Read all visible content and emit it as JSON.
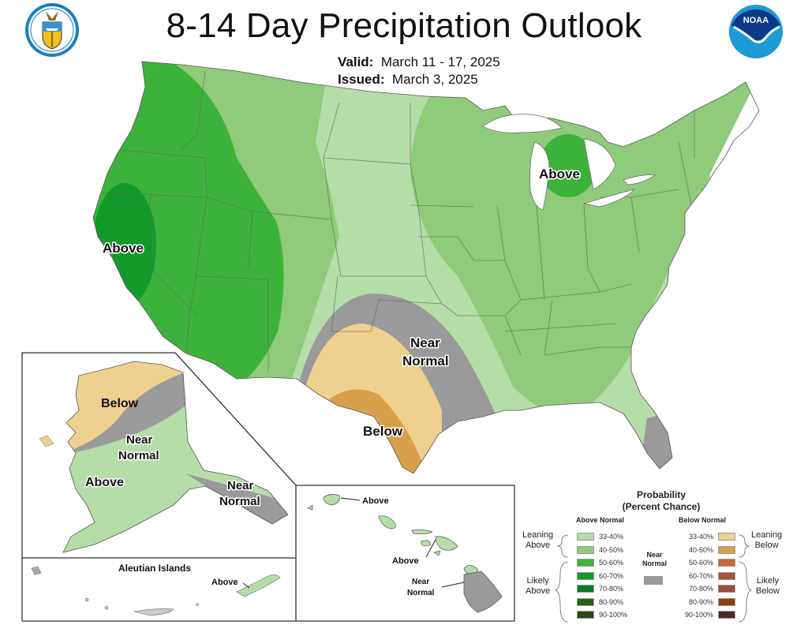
{
  "header": {
    "title": "8-14 Day Precipitation Outlook",
    "valid_label": "Valid:",
    "valid_value": "March 11 - 17, 2025",
    "issued_label": "Issued:",
    "issued_value": "March 3, 2025",
    "left_logo": "department-of-commerce-seal",
    "right_logo_text": "NOAA"
  },
  "map": {
    "conus_labels": [
      {
        "text": "Above",
        "region": "California"
      },
      {
        "text": "Above",
        "region": "Michigan"
      },
      {
        "text": "Near",
        "region": "Oklahoma/Texas"
      },
      {
        "text": "Normal",
        "region": "Oklahoma/Texas"
      },
      {
        "text": "Below",
        "region": "South Texas"
      }
    ],
    "alaska_labels": {
      "below": "Below",
      "near1": "Near",
      "normal1": "Normal",
      "above": "Above",
      "near2": "Near",
      "normal2": "Normal"
    },
    "aleutian": {
      "title": "Aleutian Islands",
      "label": "Above"
    },
    "hawaii_labels": {
      "kauai": "Above",
      "maui": "Above",
      "near": "Near",
      "normal": "Normal"
    },
    "colors": {
      "above_33_40": "#b5dda8",
      "above_40_50": "#8fcb7a",
      "above_50_60": "#3db23a",
      "above_60_70": "#139a2a",
      "near_normal": "#9a9a9a",
      "below_33_40": "#f0d08e",
      "below_40_50": "#d9a04b"
    }
  },
  "legend": {
    "title_line1": "Probability",
    "title_line2": "(Percent Chance)",
    "above_header": "Above Normal",
    "below_header": "Below Normal",
    "near_line1": "Near",
    "near_line2": "Normal",
    "leaning_above": [
      "Leaning",
      "Above"
    ],
    "likely_above": [
      "Likely",
      "Above"
    ],
    "leaning_below": [
      "Leaning",
      "Below"
    ],
    "likely_below": [
      "Likely",
      "Below"
    ],
    "above": [
      {
        "range": "33-40%",
        "color": "#b5dda8"
      },
      {
        "range": "40-50%",
        "color": "#8fcb7a"
      },
      {
        "range": "50-60%",
        "color": "#3db23a"
      },
      {
        "range": "60-70%",
        "color": "#0f9a2c"
      },
      {
        "range": "70-80%",
        "color": "#0a7a26"
      },
      {
        "range": "80-90%",
        "color": "#286018"
      },
      {
        "range": "90-100%",
        "color": "#284a14"
      }
    ],
    "below": [
      {
        "range": "33-40%",
        "color": "#f0d08e"
      },
      {
        "range": "40-50%",
        "color": "#d9a04b"
      },
      {
        "range": "50-60%",
        "color": "#c46a3a"
      },
      {
        "range": "60-70%",
        "color": "#a8553a"
      },
      {
        "range": "70-80%",
        "color": "#9a4a40"
      },
      {
        "range": "80-90%",
        "color": "#8a4010"
      },
      {
        "range": "90-100%",
        "color": "#4a2a28"
      }
    ],
    "near_color": "#9a9a9a"
  }
}
